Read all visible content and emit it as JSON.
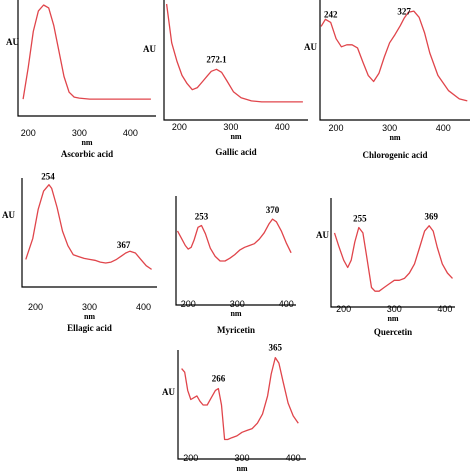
{
  "colors": {
    "curve": "#e0454b",
    "axis": "#000000"
  },
  "chart_data": [
    {
      "type": "line",
      "title": "Ascorbic acid",
      "xlabel": "nm",
      "ylabel": "AU",
      "xticks": [
        "200",
        "300",
        "400"
      ],
      "xlim": [
        180,
        450
      ],
      "ylim": [
        0,
        1
      ],
      "peaks": [],
      "series": [
        {
          "x": [
            190,
            200,
            210,
            220,
            230,
            240,
            250,
            260,
            270,
            280,
            290,
            300,
            320,
            350,
            380,
            420,
            440
          ],
          "y": [
            0.03,
            0.35,
            0.72,
            0.93,
            0.99,
            0.96,
            0.78,
            0.52,
            0.26,
            0.1,
            0.05,
            0.04,
            0.03,
            0.03,
            0.03,
            0.03,
            0.03
          ]
        }
      ]
    },
    {
      "type": "line",
      "title": "Gallic acid",
      "xlabel": "nm",
      "ylabel": "AU",
      "xticks": [
        "200",
        "300",
        "400"
      ],
      "xlim": [
        170,
        450
      ],
      "ylim": [
        0,
        1
      ],
      "peaks": [
        "272.1"
      ],
      "series": [
        {
          "x": [
            175,
            185,
            195,
            205,
            215,
            225,
            235,
            245,
            255,
            262,
            272,
            282,
            292,
            305,
            320,
            340,
            360,
            400,
            440
          ],
          "y": [
            1.0,
            0.62,
            0.44,
            0.3,
            0.22,
            0.16,
            0.18,
            0.24,
            0.3,
            0.34,
            0.36,
            0.33,
            0.25,
            0.14,
            0.08,
            0.05,
            0.04,
            0.04,
            0.04
          ]
        }
      ]
    },
    {
      "type": "line",
      "title": "Chlorogenic acid",
      "xlabel": "nm",
      "ylabel": "AU",
      "xticks": [
        "200",
        "300",
        "400"
      ],
      "xlim": [
        170,
        450
      ],
      "ylim": [
        0,
        1
      ],
      "peaks": [
        "242",
        "327"
      ],
      "series": [
        {
          "x": [
            172,
            180,
            190,
            200,
            210,
            220,
            230,
            240,
            250,
            260,
            270,
            280,
            290,
            300,
            310,
            320,
            327,
            335,
            345,
            355,
            365,
            375,
            390,
            410,
            430,
            445
          ],
          "y": [
            0.78,
            0.85,
            0.82,
            0.66,
            0.58,
            0.6,
            0.6,
            0.57,
            0.43,
            0.3,
            0.24,
            0.32,
            0.48,
            0.62,
            0.7,
            0.79,
            0.86,
            0.92,
            0.93,
            0.87,
            0.72,
            0.52,
            0.3,
            0.15,
            0.07,
            0.05
          ]
        }
      ]
    },
    {
      "type": "line",
      "title": "Ellagic acid",
      "xlabel": "nm",
      "ylabel": "AU",
      "xticks": [
        "200",
        "300",
        "400"
      ],
      "xlim": [
        175,
        425
      ],
      "ylim": [
        0,
        1
      ],
      "peaks": [
        "254",
        "367"
      ],
      "series": [
        {
          "x": [
            182,
            195,
            205,
            215,
            225,
            230,
            240,
            250,
            260,
            270,
            280,
            290,
            300,
            310,
            320,
            330,
            340,
            350,
            360,
            367,
            375,
            385,
            395,
            405,
            415
          ],
          "y": [
            0.15,
            0.38,
            0.7,
            0.9,
            0.97,
            0.93,
            0.72,
            0.46,
            0.3,
            0.2,
            0.18,
            0.16,
            0.15,
            0.14,
            0.12,
            0.11,
            0.12,
            0.15,
            0.19,
            0.22,
            0.24,
            0.22,
            0.15,
            0.08,
            0.04
          ]
        }
      ]
    },
    {
      "type": "line",
      "title": "Myricetin",
      "xlabel": "nm",
      "ylabel": "",
      "xticks": [
        "200",
        "300",
        "400"
      ],
      "xlim": [
        175,
        420
      ],
      "ylim": [
        0,
        1
      ],
      "peaks": [
        "253",
        "370"
      ],
      "series": [
        {
          "x": [
            178,
            186,
            194,
            200,
            206,
            212,
            220,
            227,
            235,
            245,
            255,
            265,
            275,
            285,
            295,
            305,
            315,
            325,
            335,
            345,
            355,
            365,
            372,
            380,
            390,
            400,
            410
          ],
          "y": [
            0.66,
            0.58,
            0.5,
            0.46,
            0.48,
            0.56,
            0.7,
            0.72,
            0.63,
            0.47,
            0.38,
            0.33,
            0.33,
            0.36,
            0.4,
            0.45,
            0.48,
            0.5,
            0.52,
            0.57,
            0.64,
            0.74,
            0.79,
            0.76,
            0.66,
            0.53,
            0.42
          ]
        }
      ]
    },
    {
      "type": "line",
      "title": "Quercetin",
      "xlabel": "nm",
      "ylabel": "AU",
      "xticks": [
        "200",
        "300",
        "400"
      ],
      "xlim": [
        175,
        420
      ],
      "ylim": [
        0,
        1
      ],
      "peaks": [
        "255",
        "369"
      ],
      "series": [
        {
          "x": [
            182,
            190,
            200,
            208,
            215,
            222,
            230,
            238,
            245,
            255,
            262,
            270,
            280,
            290,
            300,
            310,
            320,
            330,
            340,
            350,
            360,
            369,
            377,
            385,
            395,
            405,
            415
          ],
          "y": [
            0.66,
            0.52,
            0.36,
            0.28,
            0.36,
            0.56,
            0.72,
            0.66,
            0.42,
            0.06,
            0.02,
            0.02,
            0.06,
            0.1,
            0.14,
            0.14,
            0.16,
            0.22,
            0.32,
            0.5,
            0.68,
            0.74,
            0.68,
            0.5,
            0.32,
            0.22,
            0.16
          ]
        }
      ]
    },
    {
      "type": "line",
      "title": "",
      "xlabel": "nm",
      "ylabel": "AU",
      "xticks": [
        "200",
        "300",
        "400"
      ],
      "xlim": [
        175,
        425
      ],
      "ylim": [
        0,
        1
      ],
      "peaks": [
        "266",
        "365"
      ],
      "series": [
        {
          "x": [
            182,
            188,
            194,
            200,
            206,
            212,
            218,
            224,
            232,
            240,
            248,
            254,
            260,
            266,
            272,
            280,
            290,
            300,
            310,
            320,
            330,
            340,
            350,
            357,
            365,
            372,
            380,
            390,
            400,
            410
          ],
          "y": [
            0.84,
            0.8,
            0.6,
            0.5,
            0.52,
            0.54,
            0.48,
            0.44,
            0.44,
            0.52,
            0.6,
            0.62,
            0.44,
            0.06,
            0.06,
            0.08,
            0.1,
            0.14,
            0.16,
            0.18,
            0.24,
            0.34,
            0.54,
            0.78,
            0.96,
            0.9,
            0.7,
            0.46,
            0.32,
            0.24
          ]
        }
      ]
    }
  ]
}
